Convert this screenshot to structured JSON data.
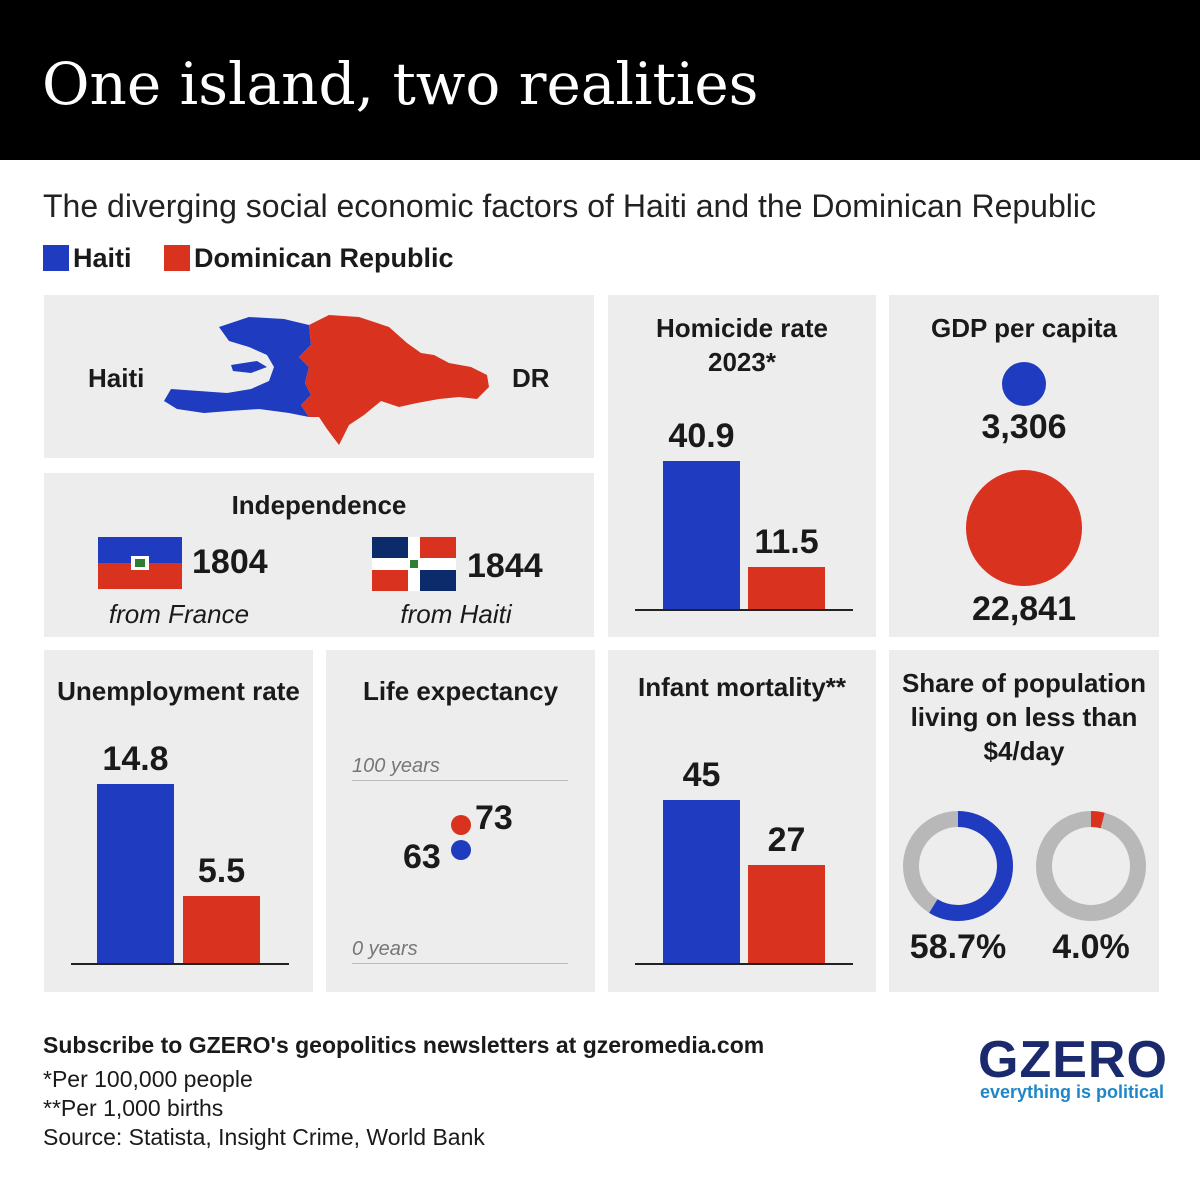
{
  "title": "One island, two realities",
  "subtitle": "The diverging social economic factors of Haiti and the Dominican Republic",
  "legend": [
    {
      "label": "Haiti",
      "color": "#1f3bbf"
    },
    {
      "label": "Dominican Republic",
      "color": "#d9321f"
    }
  ],
  "map": {
    "left_label": "Haiti",
    "right_label": "DR"
  },
  "independence": {
    "title": "Independence",
    "haiti": {
      "year": "1804",
      "from": "from France"
    },
    "dr": {
      "year": "1844",
      "from": "from Haiti"
    }
  },
  "chart_data": [
    {
      "id": "homicide",
      "type": "bar",
      "title": "Homicide rate 2023*",
      "categories": [
        "Haiti",
        "Dominican Republic"
      ],
      "values": [
        40.9,
        11.5
      ],
      "value_labels": [
        "40.9",
        "11.5"
      ]
    },
    {
      "id": "gdp",
      "type": "bubble",
      "title": "GDP per capita",
      "categories": [
        "Haiti",
        "Dominican Republic"
      ],
      "values": [
        3306,
        22841
      ],
      "value_labels": [
        "3,306",
        "22,841"
      ]
    },
    {
      "id": "unemployment",
      "type": "bar",
      "title": "Unemployment rate",
      "categories": [
        "Haiti",
        "Dominican Republic"
      ],
      "values": [
        14.8,
        5.5
      ],
      "value_labels": [
        "14.8",
        "5.5"
      ]
    },
    {
      "id": "life",
      "type": "dot",
      "title": "Life expectancy",
      "categories": [
        "Haiti",
        "Dominican Republic"
      ],
      "values": [
        63,
        73
      ],
      "value_labels": [
        "63",
        "73"
      ],
      "ylim": [
        0,
        100
      ],
      "tick_labels": [
        "100 years",
        "0 years"
      ]
    },
    {
      "id": "infant",
      "type": "bar",
      "title": "Infant mortality**",
      "categories": [
        "Haiti",
        "Dominican Republic"
      ],
      "values": [
        45,
        27
      ],
      "value_labels": [
        "45",
        "27"
      ]
    },
    {
      "id": "poverty",
      "type": "donut",
      "title": "Share of population living on less than $4/day",
      "categories": [
        "Haiti",
        "Dominican Republic"
      ],
      "values": [
        58.7,
        4.0
      ],
      "value_labels": [
        "58.7%",
        "4.0%"
      ]
    }
  ],
  "footer": {
    "subscribe": "Subscribe to GZERO's geopolitics newsletters at gzeromedia.com",
    "note1": "*Per 100,000 people",
    "note2": "**Per 1,000 births",
    "source": "Source: Statista, Insight Crime, World Bank"
  },
  "brand": {
    "logo": "GZERO",
    "tagline": "everything is political"
  },
  "colors": {
    "haiti": "#1f3bbf",
    "dr": "#d9321f",
    "panel": "#ededed",
    "donut_track": "#b8b8b8"
  }
}
